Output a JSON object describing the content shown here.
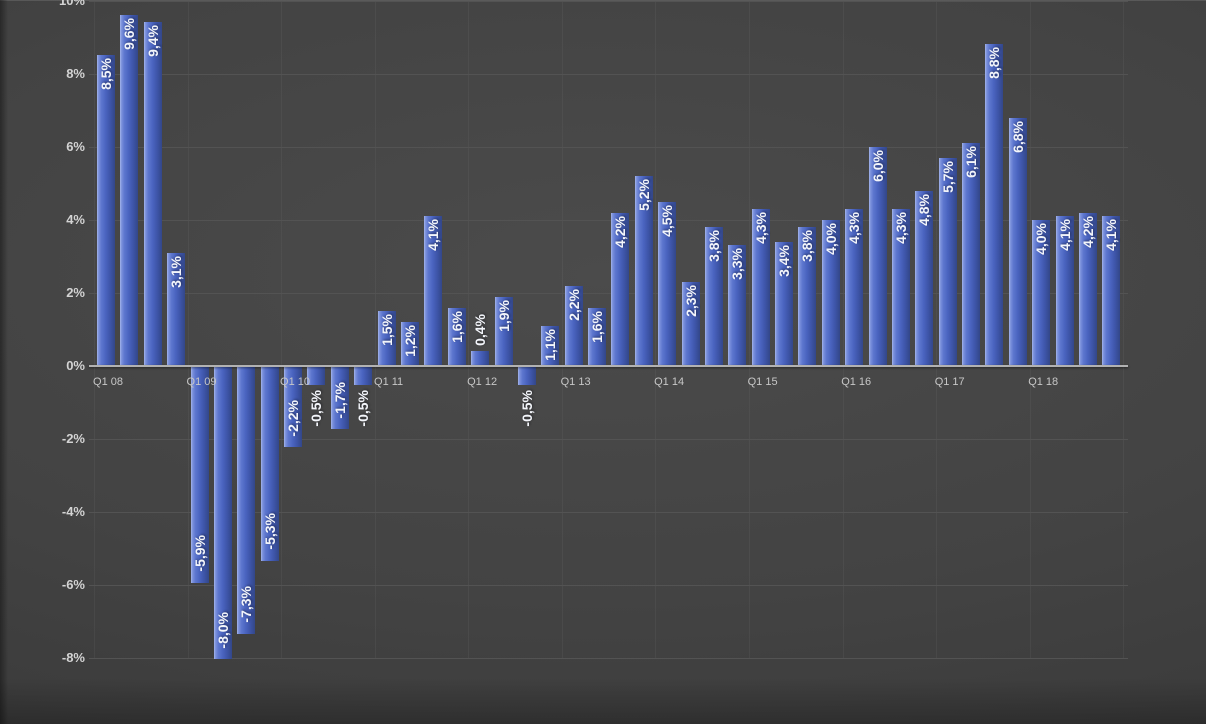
{
  "chart_data": {
    "type": "bar",
    "title": "",
    "x_tick_labels": [
      "Q1 08",
      "Q1 09",
      "Q1 10",
      "Q1 11",
      "Q1 12",
      "Q1 13",
      "Q1 14",
      "Q1 15",
      "Q1 16",
      "Q1 17",
      "Q1 18"
    ],
    "x_label_every_n_bars": 4,
    "values": [
      8.5,
      9.6,
      9.4,
      3.1,
      -5.9,
      -8.0,
      -7.3,
      -5.3,
      -2.2,
      -0.5,
      -1.7,
      -0.5,
      1.5,
      1.2,
      4.1,
      1.6,
      0.4,
      1.9,
      -0.5,
      1.1,
      2.2,
      1.6,
      4.2,
      5.2,
      4.5,
      2.3,
      3.8,
      3.3,
      4.3,
      3.4,
      3.8,
      4.0,
      4.3,
      6.0,
      4.3,
      4.8,
      5.7,
      6.1,
      8.8,
      6.8,
      4.0,
      4.1,
      4.2,
      4.1
    ],
    "data_labels": [
      "8,5%",
      "9,6%",
      "9,4%",
      "3,1%",
      "-5,9%",
      "-8,0%",
      "-7,3%",
      "-5,3%",
      "-2,2%",
      "-0,5%",
      "-1,7%",
      "-0,5%",
      "1,5%",
      "1,2%",
      "4,1%",
      "1,6%",
      "0,4%",
      "1,9%",
      "-0,5%",
      "1,1%",
      "2,2%",
      "1,6%",
      "4,2%",
      "5,2%",
      "4,5%",
      "2,3%",
      "3,8%",
      "3,3%",
      "4,3%",
      "3,4%",
      "3,8%",
      "4,0%",
      "4,3%",
      "6,0%",
      "4,3%",
      "4,8%",
      "5,7%",
      "6,1%",
      "8,8%",
      "6,8%",
      "4,0%",
      "4,1%",
      "4,2%",
      "4,1%"
    ],
    "y_ticks": [
      10,
      8,
      6,
      4,
      2,
      0,
      -2,
      -4,
      -6,
      -8
    ],
    "y_tick_labels": [
      "10%",
      "8%",
      "6%",
      "4%",
      "2%",
      "0%",
      "-2%",
      "-4%",
      "-6%",
      "-8%"
    ],
    "ylim": [
      -10,
      10
    ],
    "grid": true,
    "legend": false,
    "colors": {
      "bar_highlight": "#a6b6ea",
      "bar_main": "#4a64c0",
      "bar_dark": "#334789",
      "background": "#424242",
      "gridline": "#535353",
      "zero_line": "#b2b2b2",
      "axis_text": "#d3d3d3",
      "category_text": "#c7c7c7",
      "data_label_text": "#f3f5fa"
    }
  }
}
